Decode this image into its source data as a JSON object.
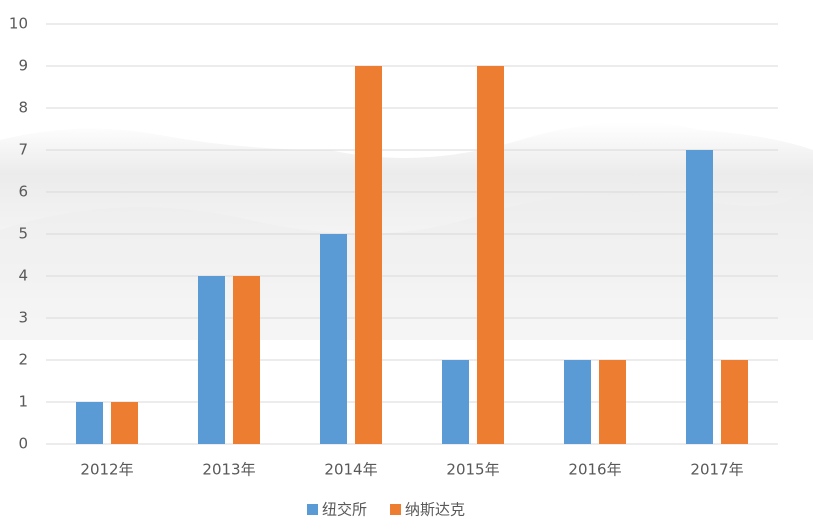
{
  "chart_data": {
    "type": "bar",
    "categories": [
      "2012年",
      "2013年",
      "2014年",
      "2015年",
      "2016年",
      "2017年"
    ],
    "series": [
      {
        "name": "纽交所",
        "color": "#5b9bd5",
        "values": [
          1,
          4,
          5,
          2,
          2,
          7
        ]
      },
      {
        "name": "纳斯达克",
        "color": "#ed7d31",
        "values": [
          1,
          4,
          9,
          9,
          2,
          2
        ]
      }
    ],
    "ylim": [
      0,
      10
    ],
    "yticks": [
      0,
      1,
      2,
      3,
      4,
      5,
      6,
      7,
      8,
      9,
      10
    ],
    "grid": true,
    "legend": "bottom"
  }
}
